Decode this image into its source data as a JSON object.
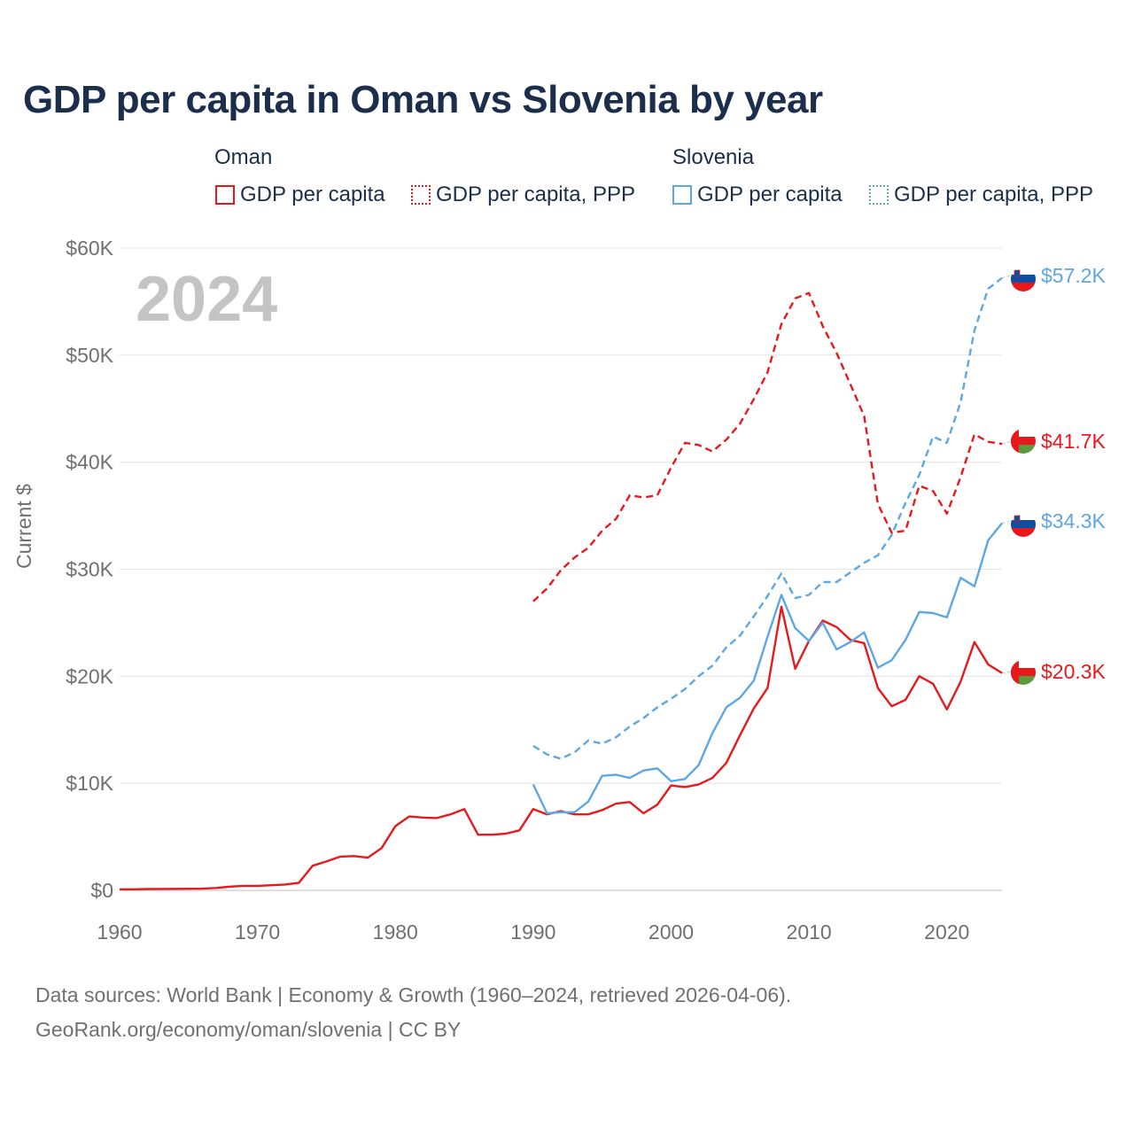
{
  "title": "GDP per capita in Oman vs Slovenia by year",
  "legend": {
    "groups": [
      {
        "name": "Oman",
        "items": [
          "GDP per capita",
          "GDP per capita, PPP"
        ],
        "color": "#e8191c"
      },
      {
        "name": "Slovenia",
        "items": [
          "GDP per capita",
          "GDP per capita, PPP"
        ],
        "color": "#5da7e4"
      }
    ]
  },
  "year_watermark": "2024",
  "source_line1": "Data sources: World Bank | Economy & Growth (1960–2024, retrieved 2026-04-06).",
  "source_line2": "GeoRank.org/economy/oman/slovenia | CC BY",
  "chart_data": {
    "type": "line",
    "title": "GDP per capita in Oman vs Slovenia by year",
    "xlabel": "",
    "ylabel": "Current $",
    "xlim": [
      1960,
      2024
    ],
    "ylim": [
      0,
      60000
    ],
    "x_ticks": [
      1960,
      1970,
      1980,
      1990,
      2000,
      2010,
      2020
    ],
    "y_ticks": [
      0,
      10000,
      20000,
      30000,
      40000,
      50000,
      60000
    ],
    "y_tick_labels": [
      "$0",
      "$10K",
      "$20K",
      "$30K",
      "$40K",
      "$50K",
      "$60K"
    ],
    "grid": true,
    "series": [
      {
        "name": "Oman GDP per capita",
        "country": "Oman",
        "color": "#e8191c",
        "dash": false,
        "end_label": "$20.3K",
        "x": [
          1960,
          1961,
          1962,
          1963,
          1964,
          1965,
          1966,
          1967,
          1968,
          1969,
          1970,
          1971,
          1972,
          1973,
          1974,
          1975,
          1976,
          1977,
          1978,
          1979,
          1980,
          1981,
          1982,
          1983,
          1984,
          1985,
          1986,
          1987,
          1988,
          1989,
          1990,
          1991,
          1992,
          1993,
          1994,
          1995,
          1996,
          1997,
          1998,
          1999,
          2000,
          2001,
          2002,
          2003,
          2004,
          2005,
          2006,
          2007,
          2008,
          2009,
          2010,
          2011,
          2012,
          2013,
          2014,
          2015,
          2016,
          2017,
          2018,
          2019,
          2020,
          2021,
          2022,
          2023,
          2024
        ],
        "values": [
          100,
          100,
          120,
          130,
          140,
          150,
          160,
          220,
          350,
          420,
          420,
          480,
          550,
          700,
          2300,
          2700,
          3150,
          3200,
          3050,
          3950,
          6000,
          6900,
          6800,
          6750,
          7100,
          7600,
          5200,
          5200,
          5300,
          5600,
          7600,
          7100,
          7400,
          7100,
          7100,
          7500,
          8100,
          8250,
          7200,
          8000,
          9800,
          9650,
          9900,
          10500,
          11900,
          14500,
          17000,
          18900,
          26500,
          20700,
          23300,
          25200,
          24600,
          23400,
          23100,
          18900,
          17200,
          17800,
          20000,
          19300,
          16900,
          19500,
          23200,
          21100,
          20300
        ]
      },
      {
        "name": "Oman GDP per capita, PPP",
        "country": "Oman",
        "color": "#e8191c",
        "dash": true,
        "end_label": "$41.7K",
        "x": [
          1990,
          1991,
          1992,
          1993,
          1994,
          1995,
          1996,
          1997,
          1998,
          1999,
          2000,
          2001,
          2002,
          2003,
          2004,
          2005,
          2006,
          2007,
          2008,
          2009,
          2010,
          2011,
          2012,
          2013,
          2014,
          2015,
          2016,
          2017,
          2018,
          2019,
          2020,
          2021,
          2022,
          2023,
          2024
        ],
        "values": [
          27000,
          28200,
          29900,
          31100,
          32000,
          33600,
          34700,
          36900,
          36700,
          36900,
          39500,
          41800,
          41600,
          41000,
          42100,
          43600,
          45900,
          48400,
          52900,
          55300,
          55800,
          52700,
          50200,
          47300,
          44300,
          36100,
          33400,
          33600,
          37800,
          37300,
          35200,
          38600,
          42600,
          41900,
          41700
        ]
      },
      {
        "name": "Slovenia GDP per capita",
        "country": "Slovenia",
        "color": "#5da7e4",
        "dash": false,
        "end_label": "$34.3K",
        "x": [
          1990,
          1991,
          1992,
          1993,
          1994,
          1995,
          1996,
          1997,
          1998,
          1999,
          2000,
          2001,
          2002,
          2003,
          2004,
          2005,
          2006,
          2007,
          2008,
          2009,
          2010,
          2011,
          2012,
          2013,
          2014,
          2015,
          2016,
          2017,
          2018,
          2019,
          2020,
          2021,
          2022,
          2023,
          2024
        ],
        "values": [
          9900,
          7200,
          7300,
          7300,
          8300,
          10700,
          10800,
          10500,
          11200,
          11400,
          10200,
          10400,
          11700,
          14700,
          17100,
          18000,
          19600,
          23700,
          27600,
          24500,
          23300,
          25000,
          22500,
          23200,
          24100,
          20800,
          21500,
          23400,
          26000,
          25900,
          25500,
          29200,
          28400,
          32700,
          34300
        ]
      },
      {
        "name": "Slovenia GDP per capita, PPP",
        "country": "Slovenia",
        "color": "#5da7e4",
        "dash": true,
        "end_label": "$57.2K",
        "x": [
          1990,
          1991,
          1992,
          1993,
          1994,
          1995,
          1996,
          1997,
          1998,
          1999,
          2000,
          2001,
          2002,
          2003,
          2004,
          2005,
          2006,
          2007,
          2008,
          2009,
          2010,
          2011,
          2012,
          2013,
          2014,
          2015,
          2016,
          2017,
          2018,
          2019,
          2020,
          2021,
          2022,
          2023,
          2024
        ],
        "values": [
          13500,
          12700,
          12300,
          12900,
          14000,
          13700,
          14300,
          15300,
          16100,
          17100,
          17900,
          18800,
          20000,
          21000,
          22700,
          23800,
          25600,
          27500,
          29600,
          27300,
          27600,
          28800,
          28800,
          29700,
          30600,
          31300,
          33200,
          36200,
          38800,
          42400,
          41800,
          45600,
          52300,
          56200,
          57200
        ]
      }
    ]
  }
}
